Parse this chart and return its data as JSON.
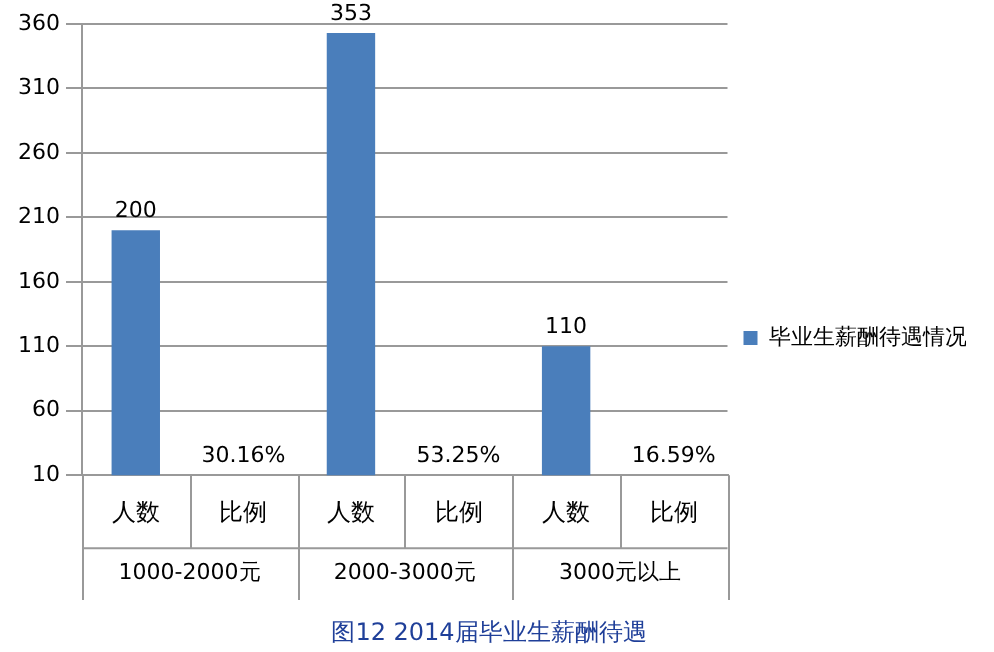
{
  "chart_data": {
    "type": "bar",
    "title": "图12 2014届毕业生薪酬待遇",
    "categories": [
      "人数",
      "比例",
      "人数",
      "比例",
      "人数",
      "比例"
    ],
    "series": [
      {
        "name": "毕业生薪酬待遇情况",
        "color": "#4a7ebb",
        "values": [
          200,
          null,
          353,
          null,
          110,
          null
        ],
        "value_labels": [
          "200",
          "30.16%",
          "353",
          "53.25%",
          "110",
          "16.59%"
        ]
      }
    ],
    "ylim": [
      10,
      360
    ],
    "yticks": [
      10,
      60,
      110,
      160,
      210,
      260,
      310,
      360
    ],
    "grid": "y",
    "legend": "right",
    "annotations": [
      "1000-2000元",
      "2000-3000元",
      "3000元以上"
    ]
  }
}
